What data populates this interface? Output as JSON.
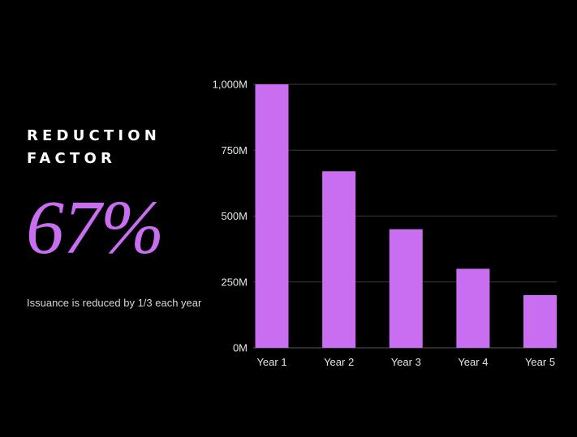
{
  "heading": "REDUCTION FACTOR",
  "big_value": "67%",
  "caption": "Issuance is reduced by 1/3 each year",
  "colors": {
    "background": "#000000",
    "accent": "#c96ef0",
    "bar": "#c96ef0",
    "gridline": "#3a3a3a",
    "text": "#e6e6e6"
  },
  "chart_data": {
    "type": "bar",
    "categories": [
      "Year 1",
      "Year 2",
      "Year 3",
      "Year 4",
      "Year 5"
    ],
    "values": [
      1000,
      670,
      450,
      300,
      200
    ],
    "ylim": [
      0,
      1000
    ],
    "yticks": [
      0,
      250,
      500,
      750,
      1000
    ],
    "ytick_labels": [
      "0M",
      "250M",
      "500M",
      "750M",
      "1,000M"
    ],
    "grid": true,
    "legend": "none"
  }
}
